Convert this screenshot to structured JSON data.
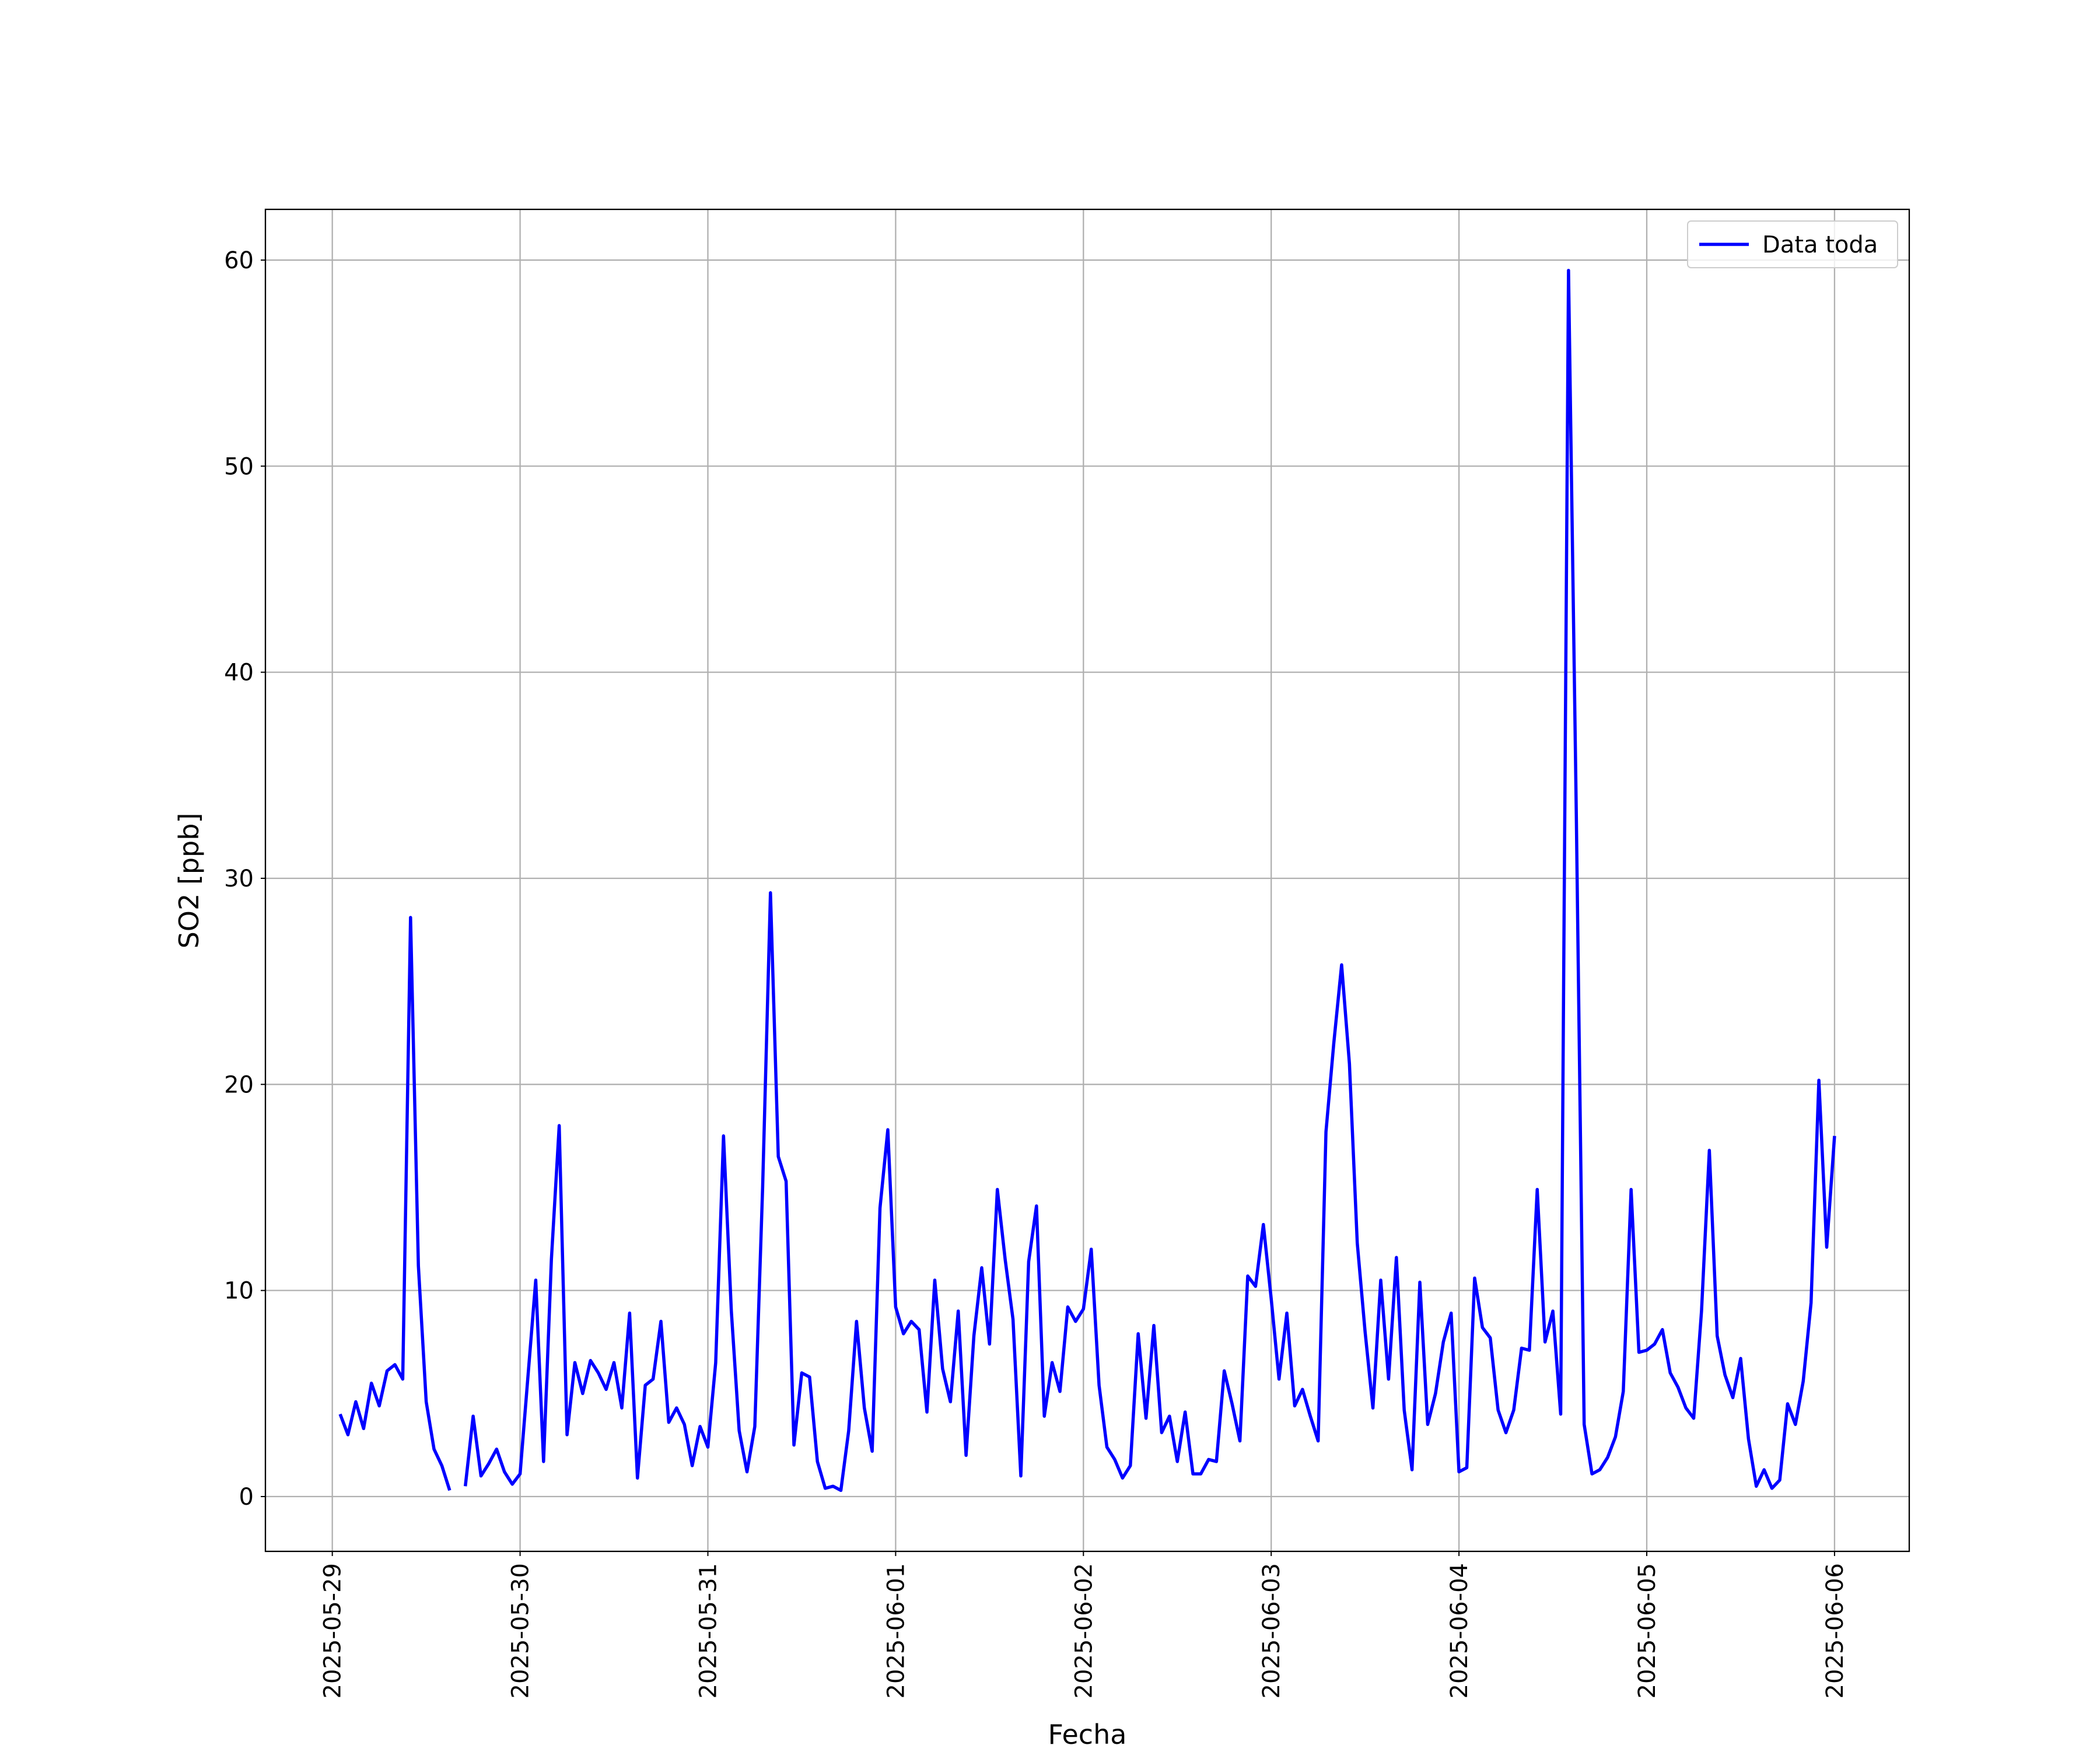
{
  "chart_data": {
    "type": "line",
    "xlabel": "Fecha",
    "ylabel": "SO2 [ppb]",
    "xlim": [
      "2025-05-28 15:27",
      "2025-06-06 09:33"
    ],
    "xticks": [
      "2025-05-29",
      "2025-05-30",
      "2025-05-31",
      "2025-06-01",
      "2025-06-02",
      "2025-06-03",
      "2025-06-04",
      "2025-06-05",
      "2025-06-06"
    ],
    "ylim": [
      -2.66,
      62.46
    ],
    "yticks": [
      0,
      10,
      20,
      30,
      40,
      50,
      60
    ],
    "grid": true,
    "legend": "upper right",
    "x": [
      "2025-05-29 01:00",
      "2025-05-29 02:00",
      "2025-05-29 03:00",
      "2025-05-29 04:00",
      "2025-05-29 05:00",
      "2025-05-29 06:00",
      "2025-05-29 07:00",
      "2025-05-29 08:00",
      "2025-05-29 09:00",
      "2025-05-29 10:00",
      "2025-05-29 11:00",
      "2025-05-29 12:00",
      "2025-05-29 13:00",
      "2025-05-29 14:00",
      "2025-05-29 15:00",
      "2025-05-29 16:00",
      "2025-05-29 17:00",
      "2025-05-29 18:00",
      "2025-05-29 19:00",
      "2025-05-29 20:00",
      "2025-05-29 21:00",
      "2025-05-29 22:00",
      "2025-05-29 23:00",
      "2025-05-30 00:00",
      "2025-05-30 01:00",
      "2025-05-30 02:00",
      "2025-05-30 03:00",
      "2025-05-30 04:00",
      "2025-05-30 05:00",
      "2025-05-30 06:00",
      "2025-05-30 07:00",
      "2025-05-30 08:00",
      "2025-05-30 09:00",
      "2025-05-30 10:00",
      "2025-05-30 11:00",
      "2025-05-30 12:00",
      "2025-05-30 13:00",
      "2025-05-30 14:00",
      "2025-05-30 15:00",
      "2025-05-30 16:00",
      "2025-05-30 17:00",
      "2025-05-30 18:00",
      "2025-05-30 19:00",
      "2025-05-30 20:00",
      "2025-05-30 21:00",
      "2025-05-30 22:00",
      "2025-05-30 23:00",
      "2025-05-31 00:00",
      "2025-05-31 01:00",
      "2025-05-31 02:00",
      "2025-05-31 03:00",
      "2025-05-31 04:00",
      "2025-05-31 05:00",
      "2025-05-31 06:00",
      "2025-05-31 07:00",
      "2025-05-31 08:00",
      "2025-05-31 09:00",
      "2025-05-31 10:00",
      "2025-05-31 11:00",
      "2025-05-31 12:00",
      "2025-05-31 13:00",
      "2025-05-31 14:00",
      "2025-05-31 15:00",
      "2025-05-31 16:00",
      "2025-05-31 17:00",
      "2025-05-31 18:00",
      "2025-05-31 19:00",
      "2025-05-31 20:00",
      "2025-05-31 21:00",
      "2025-05-31 22:00",
      "2025-05-31 23:00",
      "2025-06-01 00:00",
      "2025-06-01 01:00",
      "2025-06-01 02:00",
      "2025-06-01 03:00",
      "2025-06-01 04:00",
      "2025-06-01 05:00",
      "2025-06-01 06:00",
      "2025-06-01 07:00",
      "2025-06-01 08:00",
      "2025-06-01 09:00",
      "2025-06-01 10:00",
      "2025-06-01 11:00",
      "2025-06-01 12:00",
      "2025-06-01 13:00",
      "2025-06-01 14:00",
      "2025-06-01 15:00",
      "2025-06-01 16:00",
      "2025-06-01 17:00",
      "2025-06-01 18:00",
      "2025-06-01 19:00",
      "2025-06-01 20:00",
      "2025-06-01 21:00",
      "2025-06-01 22:00",
      "2025-06-01 23:00",
      "2025-06-02 00:00",
      "2025-06-02 01:00",
      "2025-06-02 02:00",
      "2025-06-02 03:00",
      "2025-06-02 04:00",
      "2025-06-02 05:00",
      "2025-06-02 06:00",
      "2025-06-02 07:00",
      "2025-06-02 08:00",
      "2025-06-02 09:00",
      "2025-06-02 10:00",
      "2025-06-02 11:00",
      "2025-06-02 12:00",
      "2025-06-02 13:00",
      "2025-06-02 14:00",
      "2025-06-02 15:00",
      "2025-06-02 16:00",
      "2025-06-02 17:00",
      "2025-06-02 18:00",
      "2025-06-02 19:00",
      "2025-06-02 20:00",
      "2025-06-02 21:00",
      "2025-06-02 22:00",
      "2025-06-02 23:00",
      "2025-06-03 00:00",
      "2025-06-03 01:00",
      "2025-06-03 02:00",
      "2025-06-03 03:00",
      "2025-06-03 04:00",
      "2025-06-03 05:00",
      "2025-06-03 06:00",
      "2025-06-03 07:00",
      "2025-06-03 08:00",
      "2025-06-03 09:00",
      "2025-06-03 10:00",
      "2025-06-03 11:00",
      "2025-06-03 12:00",
      "2025-06-03 13:00",
      "2025-06-03 14:00",
      "2025-06-03 15:00",
      "2025-06-03 16:00",
      "2025-06-03 17:00",
      "2025-06-03 18:00",
      "2025-06-03 19:00",
      "2025-06-03 20:00",
      "2025-06-03 21:00",
      "2025-06-03 22:00",
      "2025-06-03 23:00",
      "2025-06-04 00:00",
      "2025-06-04 01:00",
      "2025-06-04 02:00",
      "2025-06-04 03:00",
      "2025-06-04 04:00",
      "2025-06-04 05:00",
      "2025-06-04 06:00",
      "2025-06-04 07:00",
      "2025-06-04 08:00",
      "2025-06-04 09:00",
      "2025-06-04 10:00",
      "2025-06-04 11:00",
      "2025-06-04 12:00",
      "2025-06-04 13:00",
      "2025-06-04 14:00",
      "2025-06-04 15:00",
      "2025-06-04 16:00",
      "2025-06-04 17:00",
      "2025-06-04 18:00",
      "2025-06-04 19:00",
      "2025-06-04 20:00",
      "2025-06-04 21:00",
      "2025-06-04 22:00",
      "2025-06-04 23:00",
      "2025-06-05 00:00",
      "2025-06-05 01:00",
      "2025-06-05 02:00",
      "2025-06-05 03:00",
      "2025-06-05 04:00",
      "2025-06-05 05:00",
      "2025-06-05 06:00",
      "2025-06-05 07:00",
      "2025-06-05 08:00",
      "2025-06-05 09:00",
      "2025-06-05 10:00",
      "2025-06-05 11:00",
      "2025-06-05 12:00",
      "2025-06-05 13:00",
      "2025-06-05 14:00",
      "2025-06-05 15:00",
      "2025-06-05 16:00",
      "2025-06-05 17:00",
      "2025-06-05 18:00",
      "2025-06-05 19:00",
      "2025-06-05 20:00",
      "2025-06-05 21:00",
      "2025-06-05 22:00",
      "2025-06-05 23:00",
      "2025-06-06 00:00"
    ],
    "series": [
      {
        "name": "Data toda",
        "color": "#0000ff",
        "values": [
          4.0,
          3.0,
          4.6,
          3.3,
          5.5,
          4.4,
          6.1,
          6.4,
          5.7,
          28.1,
          11.2,
          4.6,
          2.3,
          1.5,
          0.3,
          null,
          0.5,
          3.9,
          1.0,
          1.6,
          2.3,
          1.2,
          0.6,
          1.1,
          5.8,
          10.5,
          1.7,
          11.5,
          18.0,
          3.0,
          6.5,
          5.0,
          6.6,
          6.0,
          5.2,
          6.5,
          4.3,
          8.9,
          0.9,
          5.4,
          5.7,
          8.5,
          3.6,
          4.3,
          3.5,
          1.5,
          3.4,
          2.4,
          6.5,
          17.5,
          9.0,
          3.2,
          1.2,
          3.4,
          15.0,
          29.3,
          16.5,
          15.3,
          2.5,
          6.0,
          5.8,
          1.7,
          0.4,
          0.5,
          0.3,
          3.2,
          8.5,
          4.3,
          2.2,
          14.0,
          17.8,
          9.2,
          7.9,
          8.5,
          8.1,
          4.1,
          10.5,
          6.2,
          4.6,
          9.0,
          2.0,
          7.8,
          11.1,
          7.4,
          14.9,
          11.5,
          8.6,
          1.0,
          11.4,
          14.1,
          3.9,
          6.5,
          5.1,
          9.2,
          8.5,
          9.1,
          12.0,
          5.4,
          2.4,
          1.8,
          0.9,
          1.5,
          7.9,
          3.8,
          8.3,
          3.1,
          3.9,
          1.7,
          4.1,
          1.1,
          1.1,
          1.8,
          1.7,
          6.1,
          4.5,
          2.7,
          10.7,
          10.2,
          13.2,
          9.6,
          5.7,
          8.9,
          4.4,
          5.2,
          3.9,
          2.7,
          17.7,
          22.0,
          25.8,
          21.0,
          12.3,
          8.0,
          4.3,
          10.5,
          5.7,
          11.6,
          4.2,
          1.3,
          10.4,
          3.5,
          5.0,
          7.5,
          8.9,
          1.2,
          1.4,
          10.6,
          8.2,
          7.7,
          4.2,
          3.1,
          4.2,
          7.2,
          7.1,
          14.9,
          7.5,
          9.0,
          4.0,
          59.5,
          33.0,
          3.5,
          1.1,
          1.3,
          1.9,
          2.9,
          5.1,
          14.9,
          7.0,
          7.1,
          7.4,
          8.1,
          6.0,
          5.3,
          4.3,
          3.8,
          9.0,
          16.8,
          7.8,
          5.9,
          4.8,
          6.7,
          2.8,
          0.5,
          1.3,
          0.4,
          0.8,
          4.5,
          3.5,
          5.6,
          9.4,
          20.2,
          12.1,
          17.5
        ]
      }
    ]
  }
}
